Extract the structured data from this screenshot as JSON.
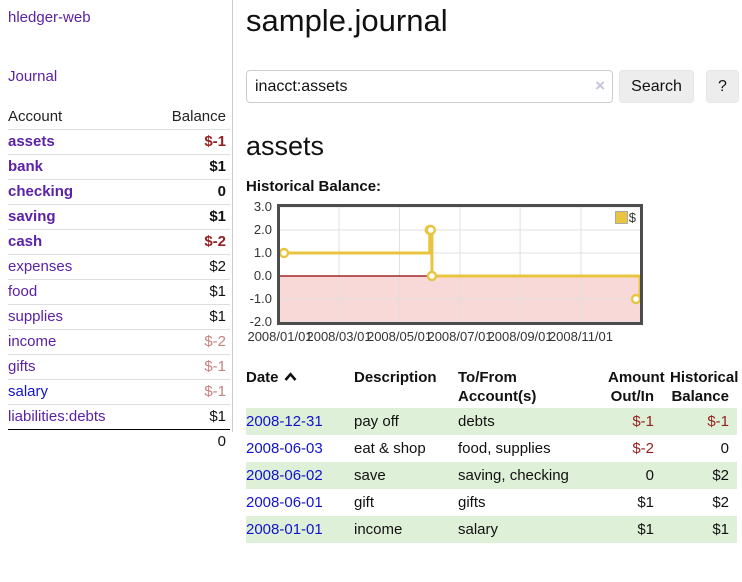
{
  "colors": {
    "link_purple": "#5b21a6",
    "link_blue": "#1212cc",
    "negative_red": "#941f1f",
    "negative_dim": "#c5827e",
    "row_green": "#dff0d8",
    "chart_line_gold": "#e9c440",
    "chart_negative_fill": "#f9d8d8",
    "chart_zero_line": "#8b0000",
    "chart_grid": "#e0e0e0",
    "chart_border": "#4d4d4d"
  },
  "sidebar": {
    "brand": "hledger-web",
    "journal_link": "Journal",
    "table": {
      "account_header": "Account",
      "balance_header": "Balance",
      "rows": [
        {
          "account": "assets",
          "balance": "$-1",
          "level": 1,
          "bold": true,
          "neg": "strong"
        },
        {
          "account": "bank",
          "balance": "$1",
          "level": 2,
          "bold": true
        },
        {
          "account": "checking",
          "balance": "0",
          "level": 3,
          "bold": true
        },
        {
          "account": "saving",
          "balance": "$1",
          "level": 3,
          "bold": true
        },
        {
          "account": "cash",
          "balance": "$-2",
          "level": 2,
          "bold": true,
          "neg": "strong"
        },
        {
          "account": "expenses",
          "balance": "$2",
          "level": 1
        },
        {
          "account": "food",
          "balance": "$1",
          "level": 2
        },
        {
          "account": "supplies",
          "balance": "$1",
          "level": 2
        },
        {
          "account": "income",
          "balance": "$-2",
          "level": 1,
          "neg": "dim"
        },
        {
          "account": "gifts",
          "balance": "$-1",
          "level": 2,
          "neg": "dim"
        },
        {
          "account": "salary",
          "balance": "$-1",
          "level": 2,
          "neg": "dim",
          "blue": true
        },
        {
          "account": "liabilities:debts",
          "balance": "$1",
          "level": 1
        }
      ],
      "total": "0"
    }
  },
  "main": {
    "title": "sample.journal",
    "search": {
      "value": "inacct:assets",
      "clear_icon": "×",
      "button": "Search",
      "help_button": "?"
    },
    "account_heading": "assets",
    "chart_label": "Historical Balance:",
    "register": {
      "headers": {
        "date": "Date",
        "sort_icon": "chevron-up",
        "description": "Description",
        "accounts": "To/From Account(s)",
        "amount": "Amount Out/In",
        "balance": "Historical Balance"
      },
      "rows": [
        {
          "date": "2008-12-31",
          "description": "pay off",
          "accounts": "debts",
          "amount": "$-1",
          "balance": "$-1"
        },
        {
          "date": "2008-06-03",
          "description": "eat & shop",
          "accounts": "food, supplies",
          "amount": "$-2",
          "balance": "0"
        },
        {
          "date": "2008-06-02",
          "description": "save",
          "accounts": "saving, checking",
          "amount": "0",
          "balance": "$2"
        },
        {
          "date": "2008-06-01",
          "description": "gift",
          "accounts": "gifts",
          "amount": "$1",
          "balance": "$2"
        },
        {
          "date": "2008-01-01",
          "description": "income",
          "accounts": "salary",
          "amount": "$1",
          "balance": "$1"
        }
      ]
    }
  },
  "chart_data": {
    "type": "line",
    "title": "Historical Balance",
    "step": true,
    "grid": true,
    "ylim": [
      -2,
      3
    ],
    "y_ticks": [
      3.0,
      2.0,
      1.0,
      0.0,
      -1.0,
      -2.0
    ],
    "x_ticks": [
      {
        "label": "2008/01/01",
        "pos": 0.0
      },
      {
        "label": "2008/03/01",
        "pos": 0.164
      },
      {
        "label": "2008/05/01",
        "pos": 0.332
      },
      {
        "label": "2008/07/01",
        "pos": 0.5
      },
      {
        "label": "2008/09/01",
        "pos": 0.667
      },
      {
        "label": "2008/11/01",
        "pos": 0.836
      }
    ],
    "legend": [
      {
        "name": "$",
        "color": "#e9c440"
      }
    ],
    "legend_position": "top-right",
    "negative_region_shaded": true,
    "series": [
      {
        "name": "$",
        "points": [
          {
            "date": "2008-01-01",
            "pos": 0.0,
            "value": 1
          },
          {
            "date": "2008-06-01",
            "pos": 0.416,
            "value": 2
          },
          {
            "date": "2008-06-02",
            "pos": 0.419,
            "value": 2
          },
          {
            "date": "2008-06-03",
            "pos": 0.422,
            "value": 0
          },
          {
            "date": "2008-12-31",
            "pos": 1.0,
            "value": -1
          }
        ]
      }
    ]
  }
}
